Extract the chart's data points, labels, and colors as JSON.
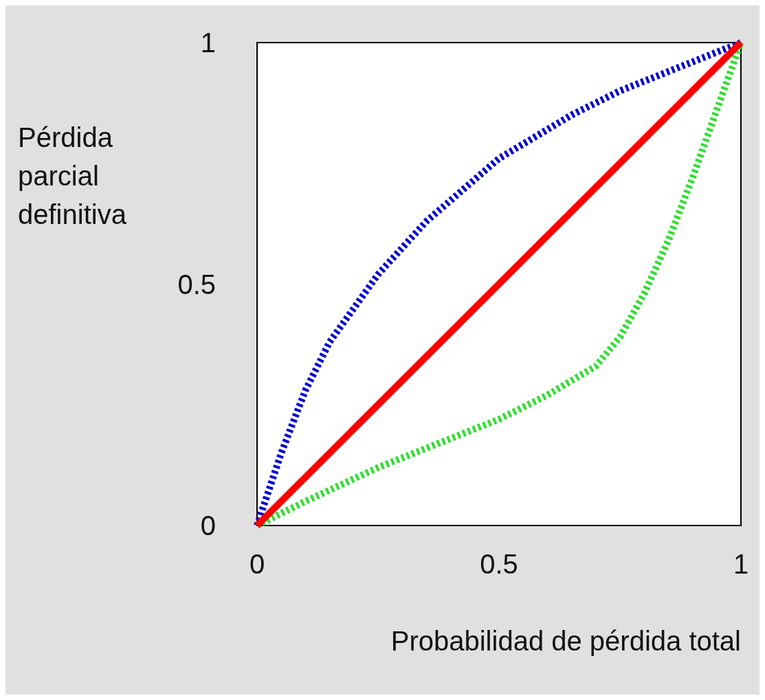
{
  "chart_data": {
    "type": "line",
    "xlabel": "Probabilidad de pérdida total",
    "ylabel": "Pérdida parcial definitiva",
    "xlim": [
      0,
      1
    ],
    "ylim": [
      0,
      1
    ],
    "xticks": [
      0,
      0.5,
      1
    ],
    "yticks": [
      0,
      0.5,
      1
    ],
    "grid": false,
    "marker": "none",
    "series": [
      {
        "color": "#0000cc",
        "line_style": "dotted",
        "x": [
          0,
          0.05,
          0.1,
          0.15,
          0.25,
          0.35,
          0.5,
          0.65,
          0.75,
          0.9,
          1
        ],
        "values": [
          0,
          0.15,
          0.28,
          0.38,
          0.52,
          0.63,
          0.76,
          0.85,
          0.9,
          0.96,
          1
        ]
      },
      {
        "color": "#33dd33",
        "line_style": "dotted",
        "x": [
          0,
          0.1,
          0.25,
          0.4,
          0.5,
          0.6,
          0.7,
          0.75,
          0.8,
          0.85,
          0.9,
          0.95,
          1
        ],
        "values": [
          0,
          0.05,
          0.12,
          0.18,
          0.22,
          0.27,
          0.33,
          0.39,
          0.48,
          0.59,
          0.72,
          0.86,
          1
        ]
      },
      {
        "color": "#ff0000",
        "line_style": "solid",
        "x": [
          0,
          1
        ],
        "values": [
          0,
          1
        ]
      }
    ]
  }
}
